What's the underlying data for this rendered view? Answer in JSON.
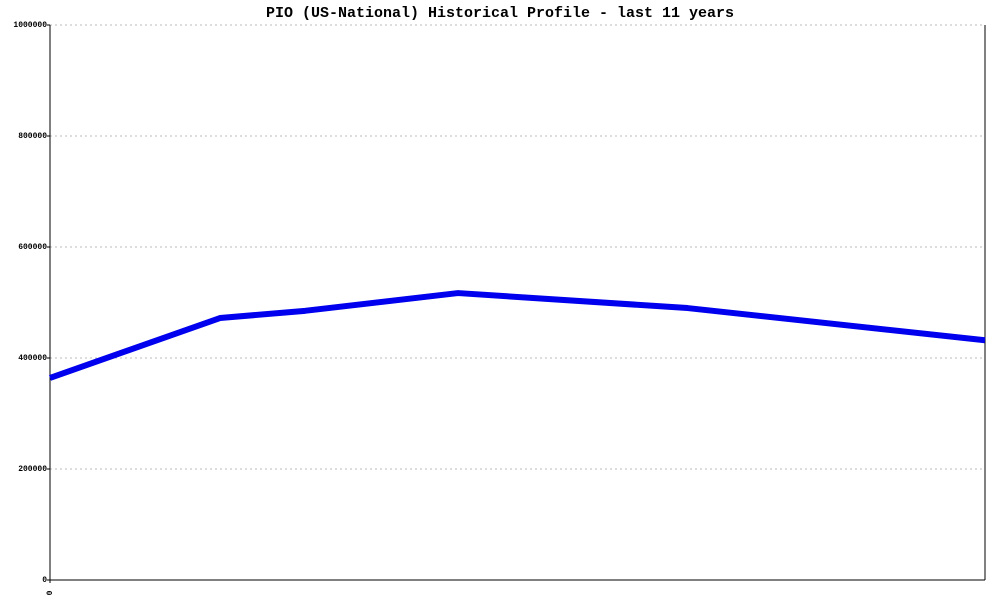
{
  "chart_data": {
    "type": "line",
    "title": "PIO (US-National) Historical Profile - last 11 years",
    "x": [
      0,
      2,
      3,
      4.8,
      7.5,
      11
    ],
    "series": [
      {
        "color": "#0000ee",
        "values": [
          364000,
          472000,
          485000,
          517000,
          490000,
          432000
        ]
      }
    ],
    "xlim": [
      0,
      11
    ],
    "xticks": [
      0
    ],
    "ylim": [
      0,
      1000000
    ],
    "yticks": [
      0,
      200000,
      400000,
      600000,
      800000,
      1000000
    ],
    "grid": true
  }
}
